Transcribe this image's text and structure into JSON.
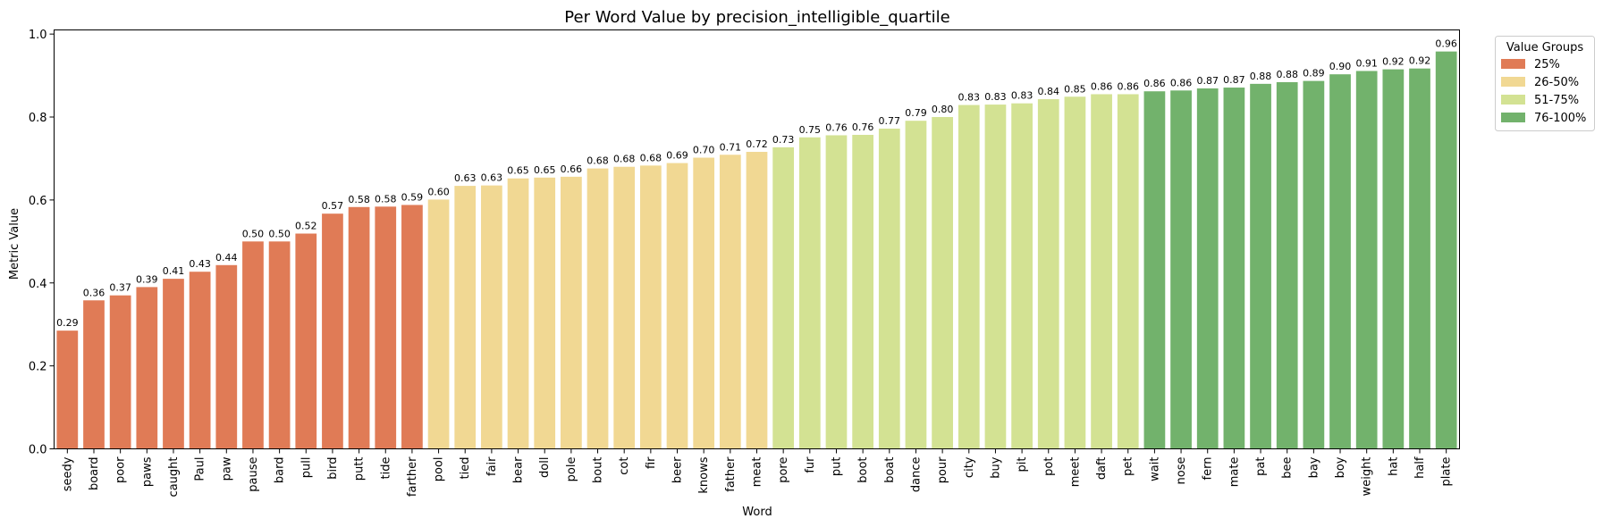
{
  "chart_data": {
    "type": "bar",
    "title": "Per Word Value by precision_intelligible_quartile",
    "xlabel": "Word",
    "ylabel": "Metric Value",
    "ylim": [
      0,
      1.01
    ],
    "yticks": [
      0.0,
      0.2,
      0.4,
      0.6,
      0.8,
      1.0
    ],
    "ytick_labels": [
      "0.0",
      "0.2",
      "0.4",
      "0.6",
      "0.8",
      "1.0"
    ],
    "grid": false,
    "legend": {
      "title": "Value Groups",
      "placement": "outside-top-right",
      "entries": [
        {
          "label": "25%",
          "color": "#e07b56"
        },
        {
          "label": "26-50%",
          "color": "#f1d893"
        },
        {
          "label": "51-75%",
          "color": "#d3e293"
        },
        {
          "label": "76-100%",
          "color": "#72b26c"
        }
      ]
    },
    "categories": [
      "seedy",
      "board",
      "poor",
      "paws",
      "caught",
      "Paul",
      "paw",
      "pause",
      "bard",
      "pull",
      "bird",
      "putt",
      "tide",
      "farther",
      "pool",
      "tied",
      "fair",
      "bear",
      "doll",
      "pole",
      "bout",
      "cot",
      "fir",
      "beer",
      "knows",
      "father",
      "meat",
      "pore",
      "fur",
      "put",
      "boot",
      "boat",
      "dance",
      "pour",
      "city",
      "buy",
      "pit",
      "pot",
      "meet",
      "daft",
      "pet",
      "wait",
      "nose",
      "fern",
      "mate",
      "pat",
      "bee",
      "bay",
      "boy",
      "weight",
      "hat",
      "half",
      "plate"
    ],
    "values": [
      0.285,
      0.358,
      0.37,
      0.39,
      0.41,
      0.427,
      0.443,
      0.5,
      0.5,
      0.519,
      0.567,
      0.583,
      0.584,
      0.588,
      0.601,
      0.634,
      0.635,
      0.652,
      0.654,
      0.656,
      0.676,
      0.68,
      0.683,
      0.689,
      0.702,
      0.709,
      0.716,
      0.727,
      0.751,
      0.756,
      0.757,
      0.772,
      0.791,
      0.8,
      0.829,
      0.83,
      0.833,
      0.843,
      0.849,
      0.855,
      0.855,
      0.862,
      0.864,
      0.869,
      0.871,
      0.88,
      0.884,
      0.887,
      0.903,
      0.911,
      0.915,
      0.917,
      0.958
    ],
    "value_labels": [
      "0.29",
      "0.36",
      "0.37",
      "0.39",
      "0.41",
      "0.43",
      "0.44",
      "0.50",
      "0.50",
      "0.52",
      "0.57",
      "0.58",
      "0.58",
      "0.59",
      "0.60",
      "0.63",
      "0.63",
      "0.65",
      "0.65",
      "0.66",
      "0.68",
      "0.68",
      "0.68",
      "0.69",
      "0.70",
      "0.71",
      "0.72",
      "0.73",
      "0.75",
      "0.76",
      "0.76",
      "0.77",
      "0.79",
      "0.80",
      "0.83",
      "0.83",
      "0.83",
      "0.84",
      "0.85",
      "0.86",
      "0.86",
      "0.86",
      "0.86",
      "0.87",
      "0.87",
      "0.88",
      "0.88",
      "0.89",
      "0.90",
      "0.91",
      "0.92",
      "0.92",
      "0.96"
    ],
    "groups": [
      0,
      0,
      0,
      0,
      0,
      0,
      0,
      0,
      0,
      0,
      0,
      0,
      0,
      0,
      1,
      1,
      1,
      1,
      1,
      1,
      1,
      1,
      1,
      1,
      1,
      1,
      1,
      2,
      2,
      2,
      2,
      2,
      2,
      2,
      2,
      2,
      2,
      2,
      2,
      2,
      2,
      3,
      3,
      3,
      3,
      3,
      3,
      3,
      3,
      3,
      3,
      3,
      3
    ]
  }
}
